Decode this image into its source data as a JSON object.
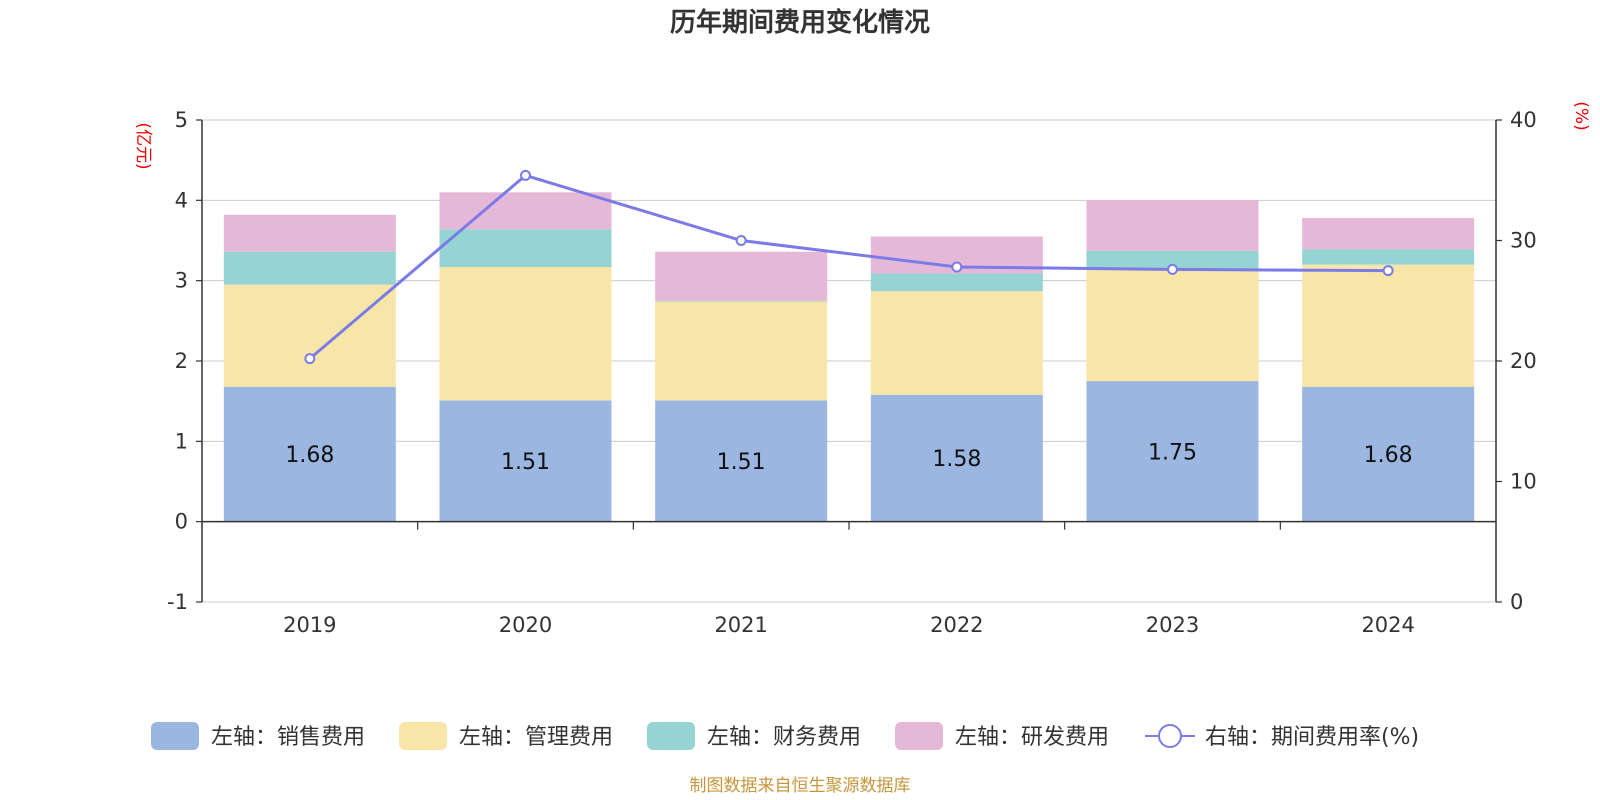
{
  "chart_data": {
    "type": "bar",
    "title": "历年期间费用变化情况",
    "categories": [
      "2019",
      "2020",
      "2021",
      "2022",
      "2023",
      "2024"
    ],
    "left_axis": {
      "unit": "(亿元)",
      "ylim": [
        -1,
        5
      ],
      "ticks": [
        "5",
        "4",
        "3",
        "2",
        "1",
        "0",
        "-1"
      ]
    },
    "right_axis": {
      "unit": "(%)",
      "ylim": [
        0,
        40
      ],
      "ticks": [
        "40",
        "30",
        "20",
        "10",
        "0"
      ]
    },
    "stacked": true,
    "series": [
      {
        "name": "左轴：销售费用",
        "color": "#9bb7e1",
        "values": [
          1.68,
          1.51,
          1.51,
          1.58,
          1.75,
          1.68
        ],
        "labels": [
          "1.68",
          "1.51",
          "1.51",
          "1.58",
          "1.75",
          "1.68"
        ]
      },
      {
        "name": "左轴：管理费用",
        "color": "#f7e6a7",
        "values": [
          1.27,
          1.66,
          1.23,
          1.29,
          1.38,
          1.52
        ]
      },
      {
        "name": "左轴：财务费用",
        "color": "#96d4d4",
        "values": [
          0.41,
          0.47,
          0.01,
          0.22,
          0.24,
          0.19
        ]
      },
      {
        "name": "左轴：研发费用",
        "color": "#e6b8d8",
        "values": [
          0.46,
          0.46,
          0.61,
          0.46,
          0.63,
          0.39
        ]
      }
    ],
    "line_series": {
      "name": "右轴：期间费用率(%)",
      "color": "#7b7be8",
      "values": [
        20.2,
        35.4,
        30.0,
        27.8,
        27.6,
        27.5
      ]
    },
    "grid": true,
    "legend_position": "bottom"
  },
  "footer": {
    "source": "制图数据来自恒生聚源数据库"
  }
}
